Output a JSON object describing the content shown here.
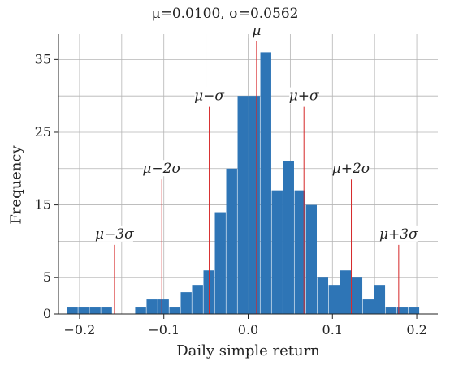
{
  "chart_data": {
    "type": "bar",
    "title": "μ=0.0100, σ=0.0562",
    "xlabel": "Daily simple return",
    "ylabel": "Frequency",
    "xlim": [
      -0.225,
      0.225
    ],
    "ylim": [
      0,
      38.5
    ],
    "xticks": [
      -0.2,
      -0.1,
      0.0,
      0.1,
      0.2
    ],
    "xtick_labels": [
      "−0.2",
      "−0.1",
      "0.0",
      "0.1",
      "0.2"
    ],
    "yticks": [
      0,
      5,
      15,
      25,
      35
    ],
    "ytick_labels": [
      "0",
      "5",
      "15",
      "25",
      "35"
    ],
    "grid": true,
    "bar_color": "#2e75b6",
    "line_color": "#d62728",
    "bin_width": 0.0135,
    "bin_left_edges": [
      -0.215,
      -0.2015,
      -0.188,
      -0.1745,
      -0.161,
      -0.1475,
      -0.134,
      -0.1205,
      -0.107,
      -0.0935,
      -0.08,
      -0.0665,
      -0.053,
      -0.0395,
      -0.026,
      -0.0125,
      0.001,
      0.0145,
      0.028,
      0.0415,
      0.055,
      0.0685,
      0.082,
      0.0955,
      0.109,
      0.1225,
      0.136,
      0.1495,
      0.163,
      0.1765,
      0.19
    ],
    "counts": [
      1,
      1,
      1,
      1,
      0,
      0,
      1,
      2,
      2,
      1,
      3,
      4,
      6,
      14,
      20,
      30,
      30,
      36,
      17,
      21,
      17,
      15,
      5,
      4,
      6,
      5,
      2,
      4,
      1,
      1,
      1
    ],
    "reference_lines": [
      {
        "label": "μ−3σ",
        "x": -0.1586,
        "height": 9.5
      },
      {
        "label": "μ−2σ",
        "x": -0.1024,
        "height": 18.5
      },
      {
        "label": "μ−σ",
        "x": -0.0462,
        "height": 28.5
      },
      {
        "label": "μ",
        "x": 0.01,
        "height": 37.5
      },
      {
        "label": "μ+σ",
        "x": 0.0662,
        "height": 28.5
      },
      {
        "label": "μ+2σ",
        "x": 0.1224,
        "height": 18.5
      },
      {
        "label": "μ+3σ",
        "x": 0.1786,
        "height": 9.5
      }
    ]
  }
}
